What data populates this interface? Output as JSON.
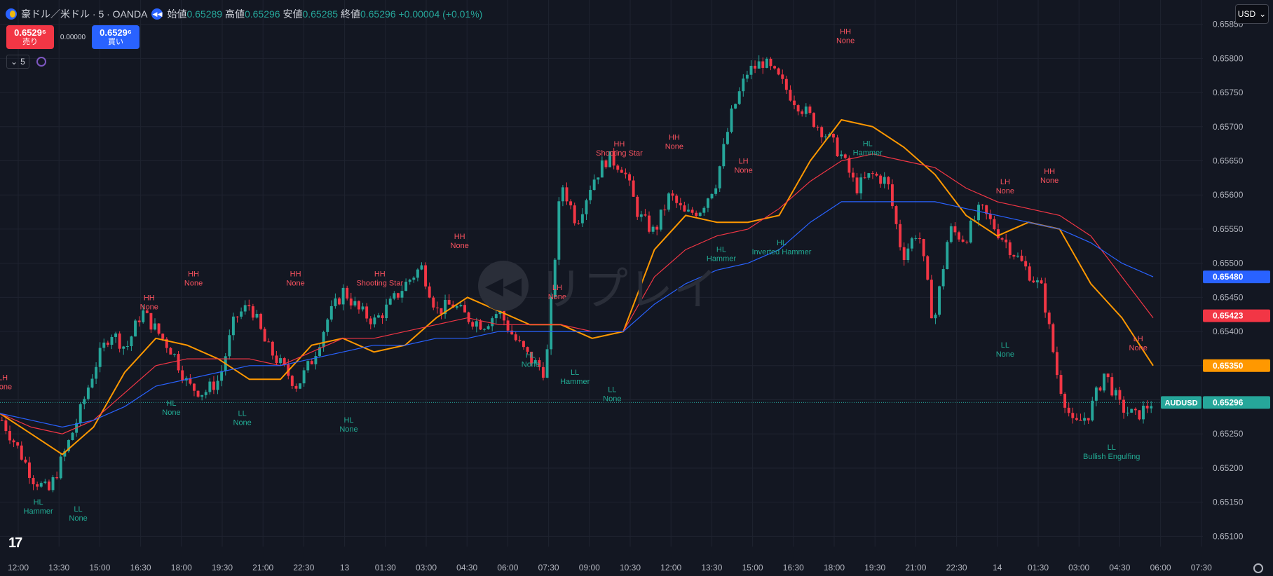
{
  "header": {
    "symbol_title": "豪ドル／米ドル · 5 · OANDA",
    "ohlc": [
      {
        "key": "始値",
        "value": "0.65289"
      },
      {
        "key": "高値",
        "value": "0.65296"
      },
      {
        "key": "安値",
        "value": "0.65285"
      },
      {
        "key": "終値",
        "value": "0.65296"
      }
    ],
    "change": "+0.00004 (+0.01%)",
    "sell_price": "0.6529⁶",
    "sell_label": "売り",
    "spread": "0.00000",
    "buy_price": "0.6529⁶",
    "buy_label": "買い",
    "interval": "5",
    "currency": "USD"
  },
  "watermark": "リプレイ",
  "colors": {
    "background": "#131722",
    "up": "#26a69a",
    "down": "#f23645",
    "ma_fast": "#ff9800",
    "ma_mid": "#f23645",
    "ma_slow": "#2962ff"
  },
  "chart_data": {
    "type": "candlestick",
    "ylim": [
      0.65085,
      0.65865
    ],
    "y_ticks": [
      "0.65850",
      "0.65800",
      "0.65750",
      "0.65700",
      "0.65650",
      "0.65600",
      "0.65550",
      "0.65500",
      "0.65450",
      "0.65400",
      "0.65350",
      "0.65300",
      "0.65250",
      "0.65200",
      "0.65150",
      "0.65100"
    ],
    "x_ticks": [
      "12:00",
      "13:30",
      "15:00",
      "16:30",
      "18:00",
      "19:30",
      "21:00",
      "22:30",
      "13",
      "01:30",
      "03:00",
      "04:30",
      "06:00",
      "07:30",
      "09:00",
      "10:30",
      "12:00",
      "13:30",
      "15:00",
      "16:30",
      "18:00",
      "19:30",
      "21:00",
      "22:30",
      "14",
      "01:30",
      "03:00",
      "04:30",
      "06:00",
      "07:30"
    ],
    "price_path": [
      0.6527,
      0.6523,
      0.65185,
      0.65165,
      0.6522,
      0.6528,
      0.6535,
      0.654,
      0.65375,
      0.6543,
      0.654,
      0.6537,
      0.6532,
      0.6531,
      0.6533,
      0.6542,
      0.6544,
      0.6538,
      0.6535,
      0.6532,
      0.6536,
      0.6542,
      0.6546,
      0.6543,
      0.65415,
      0.6544,
      0.6547,
      0.65495,
      0.6543,
      0.6544,
      0.6542,
      0.6541,
      0.6543,
      0.6539,
      0.6536,
      0.6534,
      0.6562,
      0.6556,
      0.6562,
      0.65655,
      0.6564,
      0.6557,
      0.65545,
      0.656,
      0.6557,
      0.6558,
      0.6562,
      0.6572,
      0.6578,
      0.65795,
      0.6577,
      0.6574,
      0.65715,
      0.6569,
      0.6566,
      0.6561,
      0.6563,
      0.6562,
      0.6551,
      0.6555,
      0.6541,
      0.6555,
      0.65535,
      0.6558,
      0.6555,
      0.6552,
      0.6549,
      0.6546,
      0.6533,
      0.6526,
      0.6528,
      0.6534,
      0.6529,
      0.65275,
      0.65296
    ],
    "series": [
      {
        "name": "",
        "values": [
          0.6528,
          0.6525,
          0.6522,
          0.6526,
          0.6534,
          0.6539,
          0.6538,
          0.6536,
          0.6533,
          0.6533,
          0.6538,
          0.6539,
          0.6537,
          0.6538,
          0.6542,
          0.6545,
          0.6543,
          0.6541,
          0.6541,
          0.6539,
          0.654,
          0.6552,
          0.6557,
          0.6556,
          0.6556,
          0.6557,
          0.6565,
          0.6571,
          0.657,
          0.6567,
          0.6563,
          0.6557,
          0.6554,
          0.6556,
          0.6555,
          0.6547,
          0.6542,
          0.6535
        ]
      },
      {
        "name": "",
        "values": [
          0.6528,
          0.6526,
          0.6525,
          0.6527,
          0.6531,
          0.6535,
          0.6536,
          0.6536,
          0.6536,
          0.6535,
          0.6537,
          0.6539,
          0.6539,
          0.654,
          0.6541,
          0.6542,
          0.6541,
          0.6541,
          0.6541,
          0.654,
          0.654,
          0.6548,
          0.6552,
          0.6554,
          0.6555,
          0.6558,
          0.6562,
          0.6565,
          0.6566,
          0.6565,
          0.6564,
          0.6561,
          0.6559,
          0.6558,
          0.6557,
          0.6554,
          0.6548,
          0.6542
        ]
      },
      {
        "name": "",
        "values": [
          0.6528,
          0.6527,
          0.6526,
          0.6527,
          0.6529,
          0.6532,
          0.6533,
          0.6534,
          0.6535,
          0.6535,
          0.6536,
          0.6537,
          0.6538,
          0.6538,
          0.6539,
          0.6539,
          0.654,
          0.654,
          0.654,
          0.654,
          0.654,
          0.6544,
          0.6547,
          0.6549,
          0.655,
          0.6552,
          0.6556,
          0.6559,
          0.6559,
          0.6559,
          0.6559,
          0.6558,
          0.6557,
          0.6556,
          0.6555,
          0.6553,
          0.655,
          0.6548
        ]
      }
    ],
    "price_labels": [
      {
        "value": 0.6548,
        "text": "0.65480",
        "color": "#2962ff"
      },
      {
        "value": 0.65423,
        "text": "0.65423",
        "color": "#f23645"
      },
      {
        "value": 0.6535,
        "text": "0.65350",
        "color": "#ff9800"
      }
    ],
    "last_price": {
      "symbol": "AUDUSD",
      "value": 0.65296,
      "text": "0.65296"
    },
    "annotations": [
      {
        "t": 0.0,
        "v": 0.65298,
        "kind": "high",
        "l1": "LH",
        "l2": "None"
      },
      {
        "t": 0.04,
        "v": 0.65165,
        "kind": "low",
        "l1": "HL",
        "l2": "Hammer"
      },
      {
        "t": 0.085,
        "v": 0.65155,
        "kind": "low",
        "l1": "LL",
        "l2": "None"
      },
      {
        "t": 0.165,
        "v": 0.65415,
        "kind": "high",
        "l1": "HH",
        "l2": "None"
      },
      {
        "t": 0.19,
        "v": 0.6531,
        "kind": "low",
        "l1": "HL",
        "l2": "None"
      },
      {
        "t": 0.215,
        "v": 0.6545,
        "kind": "high",
        "l1": "HH",
        "l2": "None"
      },
      {
        "t": 0.27,
        "v": 0.65295,
        "kind": "low",
        "l1": "LL",
        "l2": "None"
      },
      {
        "t": 0.33,
        "v": 0.6545,
        "kind": "high",
        "l1": "HH",
        "l2": "None"
      },
      {
        "t": 0.425,
        "v": 0.6545,
        "kind": "high",
        "l1": "HH",
        "l2": "Shooting Star"
      },
      {
        "t": 0.39,
        "v": 0.65285,
        "kind": "low",
        "l1": "HL",
        "l2": "None"
      },
      {
        "t": 0.515,
        "v": 0.65505,
        "kind": "high",
        "l1": "HH",
        "l2": "None"
      },
      {
        "t": 0.595,
        "v": 0.6538,
        "kind": "low",
        "l1": "HL",
        "l2": "None"
      },
      {
        "t": 0.625,
        "v": 0.6543,
        "kind": "high",
        "l1": "LH",
        "l2": "None"
      },
      {
        "t": 0.645,
        "v": 0.65355,
        "kind": "low",
        "l1": "LL",
        "l2": "Hammer"
      },
      {
        "t": 0.687,
        "v": 0.6533,
        "kind": "low",
        "l1": "LL",
        "l2": "None"
      },
      {
        "t": 0.695,
        "v": 0.6564,
        "kind": "high",
        "l1": "HH",
        "l2": "Shooting Star"
      },
      {
        "t": 0.757,
        "v": 0.6565,
        "kind": "high",
        "l1": "HH",
        "l2": "None"
      },
      {
        "t": 0.81,
        "v": 0.65535,
        "kind": "low",
        "l1": "HL",
        "l2": "Hammer"
      },
      {
        "t": 0.835,
        "v": 0.65615,
        "kind": "high",
        "l1": "LH",
        "l2": "None"
      },
      {
        "t": 0.878,
        "v": 0.65545,
        "kind": "low",
        "l1": "HL",
        "l2": "Inverted Hammer"
      },
      {
        "t": 0.95,
        "v": 0.65805,
        "kind": "high",
        "l1": "HH",
        "l2": "None"
      },
      {
        "t": 0.975,
        "v": 0.6569,
        "kind": "low",
        "l1": "HL",
        "l2": "Hammer"
      },
      {
        "t": 1.13,
        "v": 0.65585,
        "kind": "high",
        "l1": "LH",
        "l2": "None"
      },
      {
        "t": 1.18,
        "v": 0.656,
        "kind": "high",
        "l1": "HH",
        "l2": "None"
      },
      {
        "t": 1.13,
        "v": 0.65395,
        "kind": "low",
        "l1": "LL",
        "l2": "None"
      },
      {
        "t": 1.28,
        "v": 0.65355,
        "kind": "high",
        "l1": "LH",
        "l2": "None"
      },
      {
        "t": 1.25,
        "v": 0.65245,
        "kind": "low",
        "l1": "LL",
        "l2": "Bullish Engulfing"
      }
    ]
  }
}
